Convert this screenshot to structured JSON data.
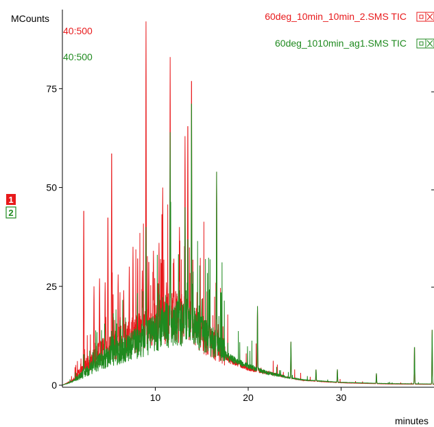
{
  "chart_data": {
    "type": "line",
    "ylabel": "MCounts",
    "xlabel": "minutes",
    "xlim": [
      0,
      40
    ],
    "ylim": [
      0,
      95
    ],
    "xticks": [
      {
        "value": 10,
        "label": "10"
      },
      {
        "value": 20,
        "label": "20"
      },
      {
        "value": 30,
        "label": "30"
      }
    ],
    "yticks": [
      {
        "value": 0,
        "label": "0"
      },
      {
        "value": 25,
        "label": "25"
      },
      {
        "value": 50,
        "label": "50"
      },
      {
        "value": 75,
        "label": "75"
      }
    ],
    "grid": false,
    "legend_position": "top-right",
    "series": [
      {
        "name": "60deg_10min_10min_2.SMS TIC",
        "range_label": "40:500",
        "marker": "1",
        "color": "#e8191b",
        "baseline": [
          [
            0,
            0
          ],
          [
            1,
            1
          ],
          [
            2,
            3
          ],
          [
            4,
            7
          ],
          [
            6,
            9
          ],
          [
            8,
            11
          ],
          [
            10,
            13
          ],
          [
            11,
            14
          ],
          [
            12,
            15
          ],
          [
            13,
            14
          ],
          [
            14,
            13
          ],
          [
            15,
            11
          ],
          [
            16,
            9
          ],
          [
            18,
            6
          ],
          [
            20,
            4
          ],
          [
            22,
            3
          ],
          [
            24,
            2
          ],
          [
            26,
            1.2
          ],
          [
            30,
            0.6
          ],
          [
            35,
            0.3
          ],
          [
            40,
            0.2
          ]
        ],
        "peaks": [
          [
            2.3,
            46
          ],
          [
            3.4,
            25
          ],
          [
            4.0,
            27
          ],
          [
            4.6,
            26
          ],
          [
            4.9,
            44
          ],
          [
            5.3,
            61
          ],
          [
            6.0,
            28
          ],
          [
            6.6,
            24
          ],
          [
            7.2,
            30
          ],
          [
            7.6,
            35
          ],
          [
            8.1,
            33
          ],
          [
            8.6,
            29
          ],
          [
            9.0,
            92
          ],
          [
            9.3,
            32
          ],
          [
            9.8,
            34
          ],
          [
            10.4,
            36
          ],
          [
            10.8,
            50
          ],
          [
            11.2,
            26
          ],
          [
            11.6,
            83
          ],
          [
            12.0,
            32
          ],
          [
            12.6,
            40
          ],
          [
            13.2,
            63
          ],
          [
            13.5,
            68
          ],
          [
            13.9,
            80
          ],
          [
            14.5,
            24
          ],
          [
            15.0,
            18
          ],
          [
            15.8,
            24
          ],
          [
            16.6,
            54
          ],
          [
            21.0,
            20
          ],
          [
            24.6,
            11
          ],
          [
            27.3,
            4
          ],
          [
            29.6,
            4
          ],
          [
            33.8,
            3
          ],
          [
            37.9,
            10
          ],
          [
            39.8,
            14
          ]
        ]
      },
      {
        "name": "60deg_1010min_ag1.SMS TIC",
        "range_label": "40:500",
        "marker": "2",
        "color": "#1f8a1f",
        "baseline": [
          [
            0,
            0
          ],
          [
            1,
            0.8
          ],
          [
            2,
            2
          ],
          [
            4,
            5
          ],
          [
            6,
            7
          ],
          [
            8,
            9
          ],
          [
            10,
            11
          ],
          [
            11,
            12.5
          ],
          [
            12,
            13.5
          ],
          [
            13,
            13
          ],
          [
            14,
            12.5
          ],
          [
            15,
            11
          ],
          [
            16,
            9.5
          ],
          [
            18,
            6.5
          ],
          [
            20,
            4.5
          ],
          [
            22,
            3
          ],
          [
            24,
            2
          ],
          [
            26,
            1.3
          ],
          [
            30,
            0.7
          ],
          [
            35,
            0.4
          ],
          [
            40,
            0.3
          ]
        ],
        "peaks": [
          [
            2.3,
            8
          ],
          [
            3.4,
            9
          ],
          [
            5.3,
            14
          ],
          [
            7.6,
            13
          ],
          [
            8.6,
            14
          ],
          [
            9.0,
            40
          ],
          [
            9.8,
            15
          ],
          [
            10.4,
            18
          ],
          [
            10.8,
            20
          ],
          [
            11.6,
            64
          ],
          [
            12.6,
            24
          ],
          [
            13.2,
            45
          ],
          [
            13.5,
            38
          ],
          [
            13.9,
            74
          ],
          [
            15.0,
            20
          ],
          [
            15.8,
            24
          ],
          [
            16.6,
            54
          ],
          [
            21.0,
            20
          ],
          [
            24.6,
            11
          ],
          [
            27.3,
            4
          ],
          [
            29.6,
            4
          ],
          [
            33.8,
            3
          ],
          [
            37.9,
            10
          ],
          [
            39.8,
            14
          ]
        ]
      }
    ]
  }
}
